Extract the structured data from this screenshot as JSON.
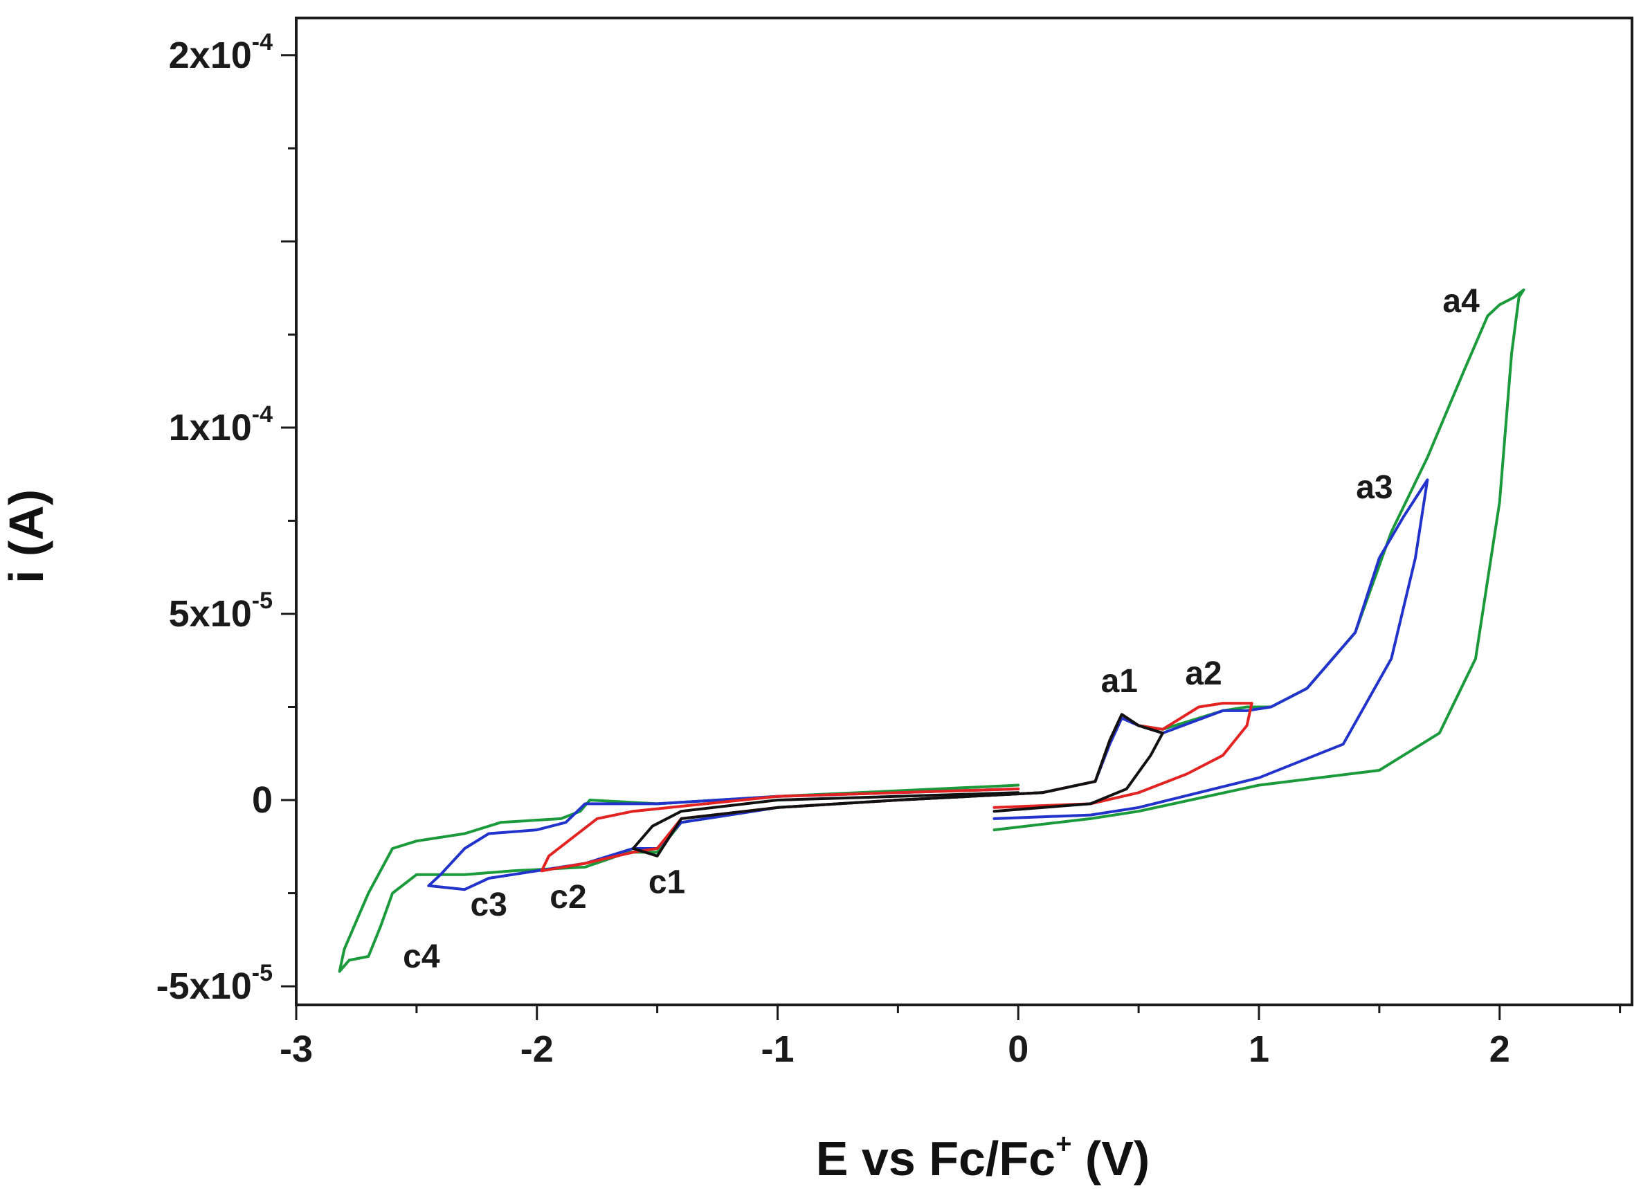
{
  "chart_data": {
    "type": "line",
    "title": "",
    "xlabel": "E vs Fc/Fc⁺ (V)",
    "xlabel_parts": {
      "main": "E vs Fc/Fc",
      "sup": "+",
      "tail": " (V)"
    },
    "ylabel": "i (A)",
    "xlim": [
      -3,
      2.55
    ],
    "ylim": [
      -5.5e-05,
      0.00021
    ],
    "x_ticks": [
      {
        "value": -3,
        "label": "-3"
      },
      {
        "value": -2,
        "label": "-2"
      },
      {
        "value": -1,
        "label": "-1"
      },
      {
        "value": 0,
        "label": "0"
      },
      {
        "value": 1,
        "label": "1"
      },
      {
        "value": 2,
        "label": "2"
      }
    ],
    "y_ticks": [
      {
        "value": -5e-05,
        "mantissa": "-5x10",
        "exp": "-5"
      },
      {
        "value": 0,
        "mantissa": "0",
        "exp": ""
      },
      {
        "value": 5e-05,
        "mantissa": "5x10",
        "exp": "-5"
      },
      {
        "value": 0.0001,
        "mantissa": "1x10",
        "exp": "-4"
      },
      {
        "value": 0.0002,
        "mantissa": "2x10",
        "exp": "-4"
      }
    ],
    "grid": false,
    "series": [
      {
        "name": "green",
        "color": "#1a9a3a",
        "points": [
          [
            -0.1,
            -8e-06
          ],
          [
            0.3,
            -5e-06
          ],
          [
            0.5,
            -3e-06
          ],
          [
            1.0,
            4e-06
          ],
          [
            1.5,
            8e-06
          ],
          [
            1.75,
            1.8e-05
          ],
          [
            1.9,
            3.8e-05
          ],
          [
            2.0,
            8e-05
          ],
          [
            2.05,
            0.00012
          ],
          [
            2.08,
            0.000135
          ],
          [
            2.1,
            0.000137
          ],
          [
            2.06,
            0.000135
          ],
          [
            2.0,
            0.000133
          ],
          [
            1.95,
            0.00013
          ],
          [
            1.85,
            0.000115
          ],
          [
            1.7,
            9.2e-05
          ],
          [
            1.55,
            7.2e-05
          ],
          [
            1.4,
            4.5e-05
          ],
          [
            1.2,
            3e-05
          ],
          [
            1.05,
            2.5e-05
          ],
          [
            0.95,
            2.5e-05
          ],
          [
            0.85,
            2.4e-05
          ],
          [
            0.6,
            1.9e-05
          ],
          [
            0.5,
            2e-05
          ],
          [
            0.43,
            2.3e-05
          ],
          [
            0.38,
            1.6e-05
          ],
          [
            0.32,
            5e-06
          ],
          [
            0.1,
            2e-06
          ],
          [
            -0.5,
            0.0
          ],
          [
            -1.0,
            -2e-06
          ],
          [
            -1.4,
            -6e-06
          ],
          [
            -1.5,
            -1.4e-05
          ],
          [
            -1.62,
            -1.4e-05
          ],
          [
            -1.8,
            -1.8e-05
          ],
          [
            -2.1,
            -1.9e-05
          ],
          [
            -2.3,
            -2e-05
          ],
          [
            -2.5,
            -2e-05
          ],
          [
            -2.6,
            -2.5e-05
          ],
          [
            -2.65,
            -3.4e-05
          ],
          [
            -2.7,
            -4.2e-05
          ],
          [
            -2.78,
            -4.3e-05
          ],
          [
            -2.82,
            -4.6e-05
          ],
          [
            -2.8,
            -4e-05
          ],
          [
            -2.7,
            -2.5e-05
          ],
          [
            -2.6,
            -1.3e-05
          ],
          [
            -2.5,
            -1.1e-05
          ],
          [
            -2.3,
            -9e-06
          ],
          [
            -2.15,
            -6e-06
          ],
          [
            -1.9,
            -5e-06
          ],
          [
            -1.82,
            -3e-06
          ],
          [
            -1.78,
            0.0
          ],
          [
            -1.5,
            -1e-06
          ],
          [
            -1.0,
            1e-06
          ],
          [
            0.0,
            4e-06
          ]
        ]
      },
      {
        "name": "blue",
        "color": "#2233cc",
        "points": [
          [
            -0.1,
            -5e-06
          ],
          [
            0.3,
            -4e-06
          ],
          [
            0.5,
            -2e-06
          ],
          [
            1.0,
            6e-06
          ],
          [
            1.35,
            1.5e-05
          ],
          [
            1.55,
            3.8e-05
          ],
          [
            1.65,
            6.5e-05
          ],
          [
            1.7,
            8.6e-05
          ],
          [
            1.68,
            8.4e-05
          ],
          [
            1.6,
            7.6e-05
          ],
          [
            1.5,
            6.5e-05
          ],
          [
            1.4,
            4.5e-05
          ],
          [
            1.2,
            3e-05
          ],
          [
            1.05,
            2.5e-05
          ],
          [
            0.95,
            2.4e-05
          ],
          [
            0.85,
            2.4e-05
          ],
          [
            0.6,
            1.8e-05
          ],
          [
            0.5,
            2e-05
          ],
          [
            0.43,
            2.2e-05
          ],
          [
            0.38,
            1.5e-05
          ],
          [
            0.32,
            5e-06
          ],
          [
            0.1,
            2e-06
          ],
          [
            -0.5,
            0.0
          ],
          [
            -1.0,
            -2e-06
          ],
          [
            -1.4,
            -6e-06
          ],
          [
            -1.5,
            -1.3e-05
          ],
          [
            -1.6,
            -1.3e-05
          ],
          [
            -1.8,
            -1.7e-05
          ],
          [
            -2.0,
            -1.9e-05
          ],
          [
            -2.2,
            -2.1e-05
          ],
          [
            -2.3,
            -2.4e-05
          ],
          [
            -2.45,
            -2.3e-05
          ],
          [
            -2.4,
            -2e-05
          ],
          [
            -2.3,
            -1.3e-05
          ],
          [
            -2.2,
            -9e-06
          ],
          [
            -2.0,
            -8e-06
          ],
          [
            -1.88,
            -6e-06
          ],
          [
            -1.8,
            -1e-06
          ],
          [
            -1.5,
            -1e-06
          ],
          [
            -1.0,
            1e-06
          ],
          [
            0.0,
            3e-06
          ]
        ]
      },
      {
        "name": "red",
        "color": "#e32222",
        "points": [
          [
            -0.1,
            -2e-06
          ],
          [
            0.3,
            -1e-06
          ],
          [
            0.5,
            2e-06
          ],
          [
            0.7,
            7e-06
          ],
          [
            0.85,
            1.2e-05
          ],
          [
            0.95,
            2e-05
          ],
          [
            0.97,
            2.6e-05
          ],
          [
            0.85,
            2.6e-05
          ],
          [
            0.75,
            2.5e-05
          ],
          [
            0.6,
            1.9e-05
          ],
          [
            0.5,
            2e-05
          ],
          [
            0.43,
            2.3e-05
          ],
          [
            0.38,
            1.6e-05
          ],
          [
            0.32,
            5e-06
          ],
          [
            0.1,
            2e-06
          ],
          [
            -0.5,
            0.0
          ],
          [
            -1.0,
            -2e-06
          ],
          [
            -1.4,
            -5e-06
          ],
          [
            -1.5,
            -1.3e-05
          ],
          [
            -1.6,
            -1.4e-05
          ],
          [
            -1.8,
            -1.7e-05
          ],
          [
            -1.98,
            -1.9e-05
          ],
          [
            -1.95,
            -1.5e-05
          ],
          [
            -1.75,
            -5e-06
          ],
          [
            -1.6,
            -3e-06
          ],
          [
            -1.0,
            1e-06
          ],
          [
            0.0,
            3e-06
          ]
        ]
      },
      {
        "name": "black",
        "color": "#111111",
        "points": [
          [
            -0.1,
            -3e-06
          ],
          [
            0.3,
            -1e-06
          ],
          [
            0.45,
            3e-06
          ],
          [
            0.55,
            1.2e-05
          ],
          [
            0.6,
            1.8e-05
          ],
          [
            0.5,
            2e-05
          ],
          [
            0.43,
            2.3e-05
          ],
          [
            0.38,
            1.6e-05
          ],
          [
            0.32,
            5e-06
          ],
          [
            0.1,
            2e-06
          ],
          [
            -0.5,
            0.0
          ],
          [
            -1.0,
            -2e-06
          ],
          [
            -1.4,
            -5e-06
          ],
          [
            -1.5,
            -1.5e-05
          ],
          [
            -1.6,
            -1.3e-05
          ],
          [
            -1.52,
            -7e-06
          ],
          [
            -1.4,
            -3e-06
          ],
          [
            -1.0,
            0.0
          ],
          [
            0.0,
            2e-06
          ]
        ]
      }
    ],
    "annotations": [
      {
        "text": "a1",
        "x": 0.42,
        "y": 2.9e-05
      },
      {
        "text": "a2",
        "x": 0.77,
        "y": 3.1e-05
      },
      {
        "text": "a3",
        "x": 1.48,
        "y": 8.1e-05
      },
      {
        "text": "a4",
        "x": 1.84,
        "y": 0.000131
      },
      {
        "text": "c1",
        "x": -1.46,
        "y": -2.5e-05
      },
      {
        "text": "c2",
        "x": -1.87,
        "y": -2.9e-05
      },
      {
        "text": "c3",
        "x": -2.2,
        "y": -3.1e-05
      },
      {
        "text": "c4",
        "x": -2.48,
        "y": -4.5e-05
      }
    ]
  }
}
